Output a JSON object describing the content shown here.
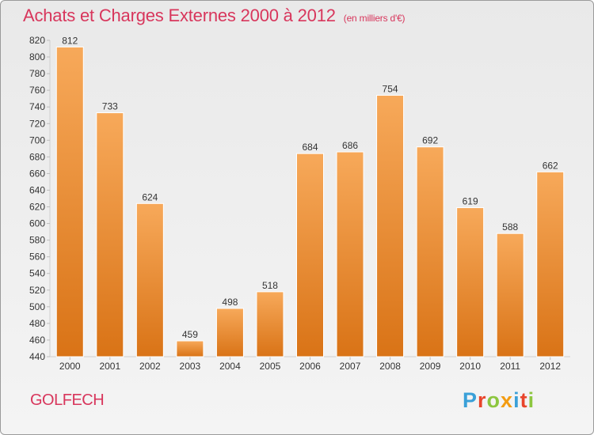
{
  "header": {
    "title": "Achats et Charges Externes 2000 à 2012",
    "subtitle": "(en milliers d'€)"
  },
  "footer": {
    "commune": "GOLFECH",
    "logo": "Proxiti"
  },
  "colors": {
    "bar_light": "#f7a95a",
    "bar_dark": "#d97316",
    "title": "#d8365c",
    "logo_letters": [
      "#3aa0d8",
      "#e8452c",
      "#8cc63f",
      "#f39c12",
      "#3aa0d8",
      "#e8452c",
      "#8cc63f"
    ]
  },
  "chart_data": {
    "type": "bar",
    "title": "Achats et Charges Externes 2000 à 2012",
    "subtitle": "(en milliers d'€)",
    "categories": [
      "2000",
      "2001",
      "2002",
      "2003",
      "2004",
      "2005",
      "2006",
      "2007",
      "2008",
      "2009",
      "2010",
      "2011",
      "2012"
    ],
    "values": [
      812,
      733,
      624,
      459,
      498,
      518,
      684,
      686,
      754,
      692,
      619,
      588,
      662
    ],
    "ylim": [
      440,
      820
    ],
    "yticks": [
      440,
      460,
      480,
      500,
      520,
      540,
      560,
      580,
      600,
      620,
      640,
      660,
      680,
      700,
      720,
      740,
      760,
      780,
      800,
      820
    ],
    "grid": false,
    "data_labels": true
  }
}
